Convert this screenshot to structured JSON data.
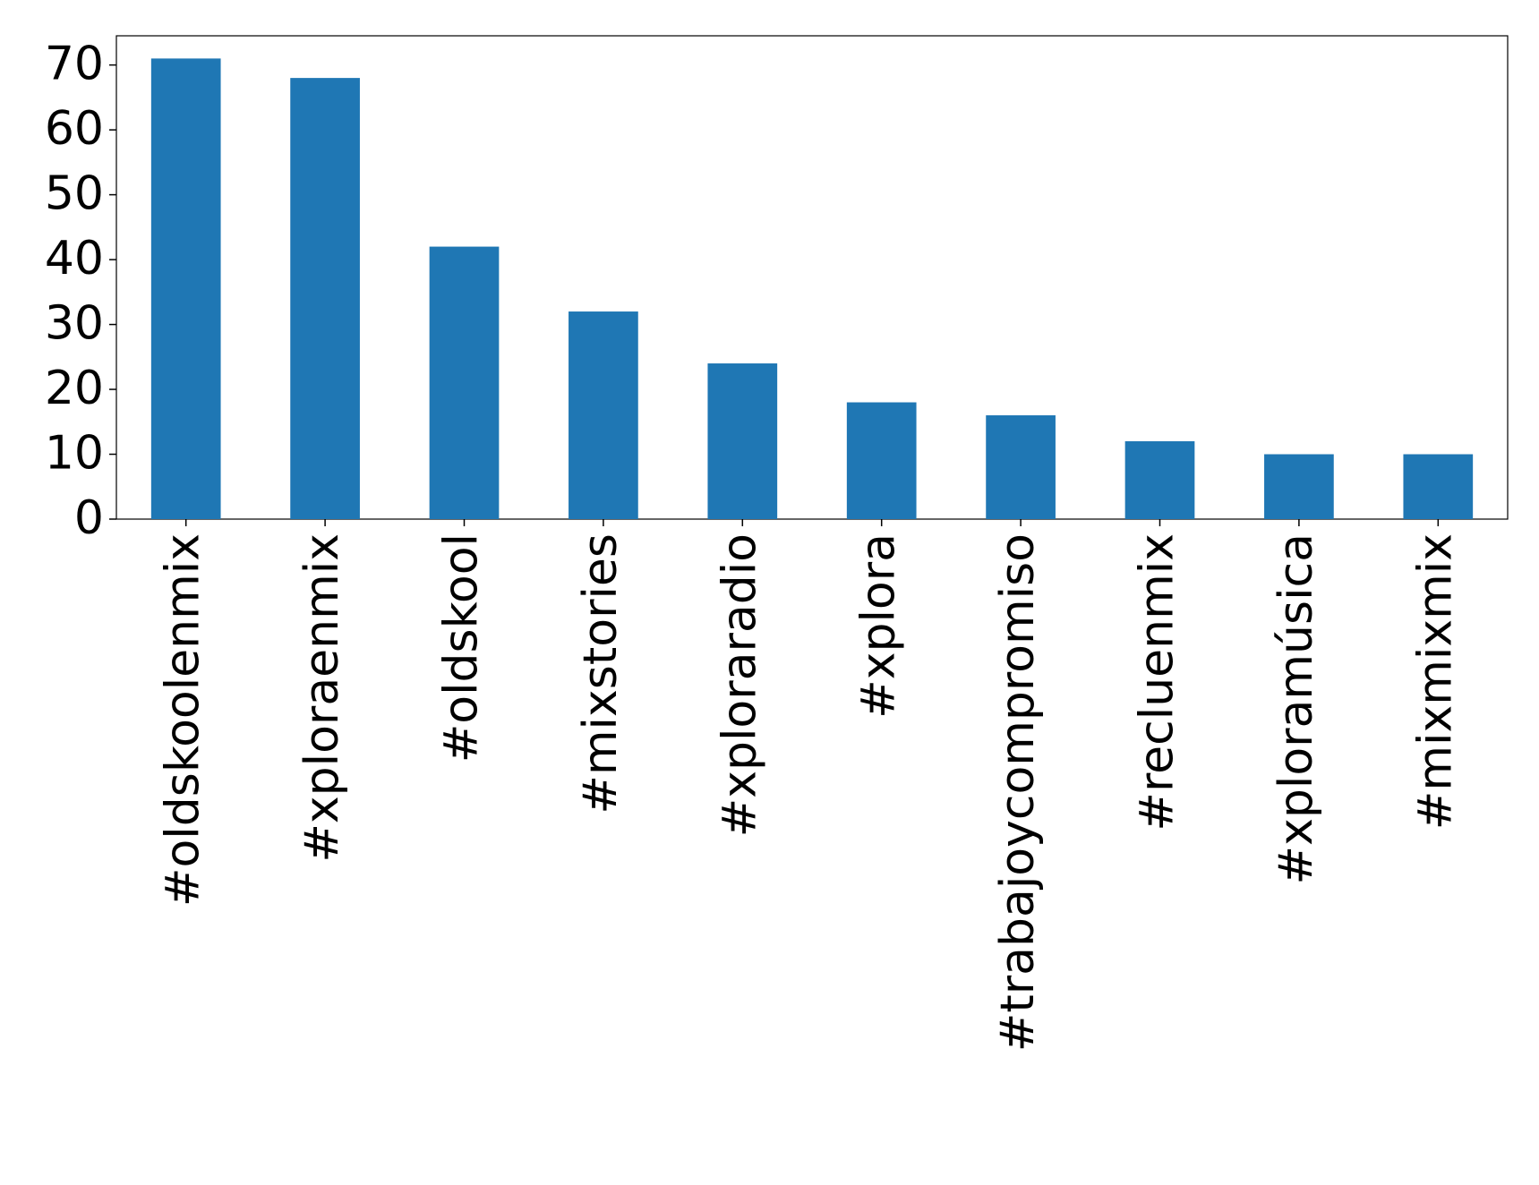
{
  "chart_data": {
    "type": "bar",
    "categories": [
      "#oldskoolenmix",
      "#xploraenmix",
      "#oldskool",
      "#mixstories",
      "#xploraradio",
      "#xplora",
      "#trabajoycompromiso",
      "#recluenmix",
      "#xploramúsica",
      "#mixmixmix"
    ],
    "values": [
      71,
      68,
      42,
      32,
      24,
      18,
      16,
      12,
      10,
      10
    ],
    "color": "#1f77b4",
    "ylim": [
      0,
      74.5
    ],
    "yticks": [
      0,
      10,
      20,
      30,
      40,
      50,
      60,
      70
    ],
    "grid": false
  }
}
